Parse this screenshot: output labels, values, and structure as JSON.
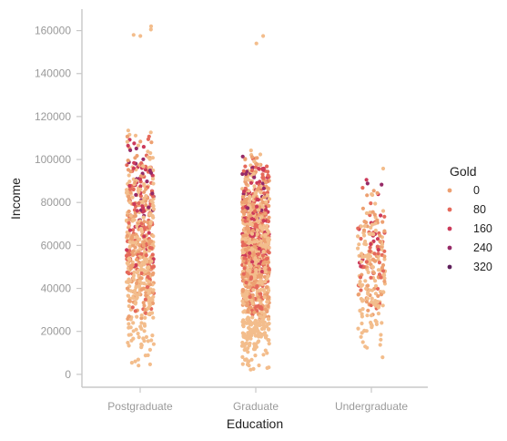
{
  "chart_data": {
    "type": "scatter",
    "subtype": "strip",
    "title": "",
    "xlabel": "Education",
    "ylabel": "Income",
    "categories": [
      "Postgraduate",
      "Graduate",
      "Undergraduate"
    ],
    "ylim": [
      -6000,
      170000
    ],
    "yticks": [
      0,
      20000,
      40000,
      60000,
      80000,
      100000,
      120000,
      140000,
      160000
    ],
    "hue": "Gold",
    "legend": {
      "title": "Gold",
      "placement": "right",
      "entries": [
        {
          "label": "0",
          "value": 0,
          "color": "#eda071"
        },
        {
          "label": "80",
          "value": 80,
          "color": "#e5695b"
        },
        {
          "label": "160",
          "value": 160,
          "color": "#cc3a5a"
        },
        {
          "label": "240",
          "value": 240,
          "color": "#962a67"
        },
        {
          "label": "320",
          "value": 320,
          "color": "#5e1f5b"
        }
      ]
    },
    "palette": [
      "#f3bd8c",
      "#eda071",
      "#e5695b",
      "#cc3a5a",
      "#962a67",
      "#5e1f5b"
    ],
    "grid": false,
    "series": [
      {
        "category": "Postgraduate",
        "count": 620,
        "income_range": [
          4000,
          113000
        ],
        "outliers": [
          {
            "income": 157500,
            "gold": 10
          },
          {
            "income": 158000,
            "gold": 15
          },
          {
            "income": 160500,
            "gold": 8
          },
          {
            "income": 162000,
            "gold": 12
          },
          {
            "income": 113500,
            "gold": 20
          }
        ]
      },
      {
        "category": "Graduate",
        "count": 1120,
        "income_range": [
          2000,
          105000
        ],
        "outliers": [
          {
            "income": 157500,
            "gold": 10
          },
          {
            "income": 154000,
            "gold": 15
          }
        ]
      },
      {
        "category": "Undergraduate",
        "count": 250,
        "income_range": [
          7500,
          96000
        ],
        "outliers": []
      }
    ]
  }
}
